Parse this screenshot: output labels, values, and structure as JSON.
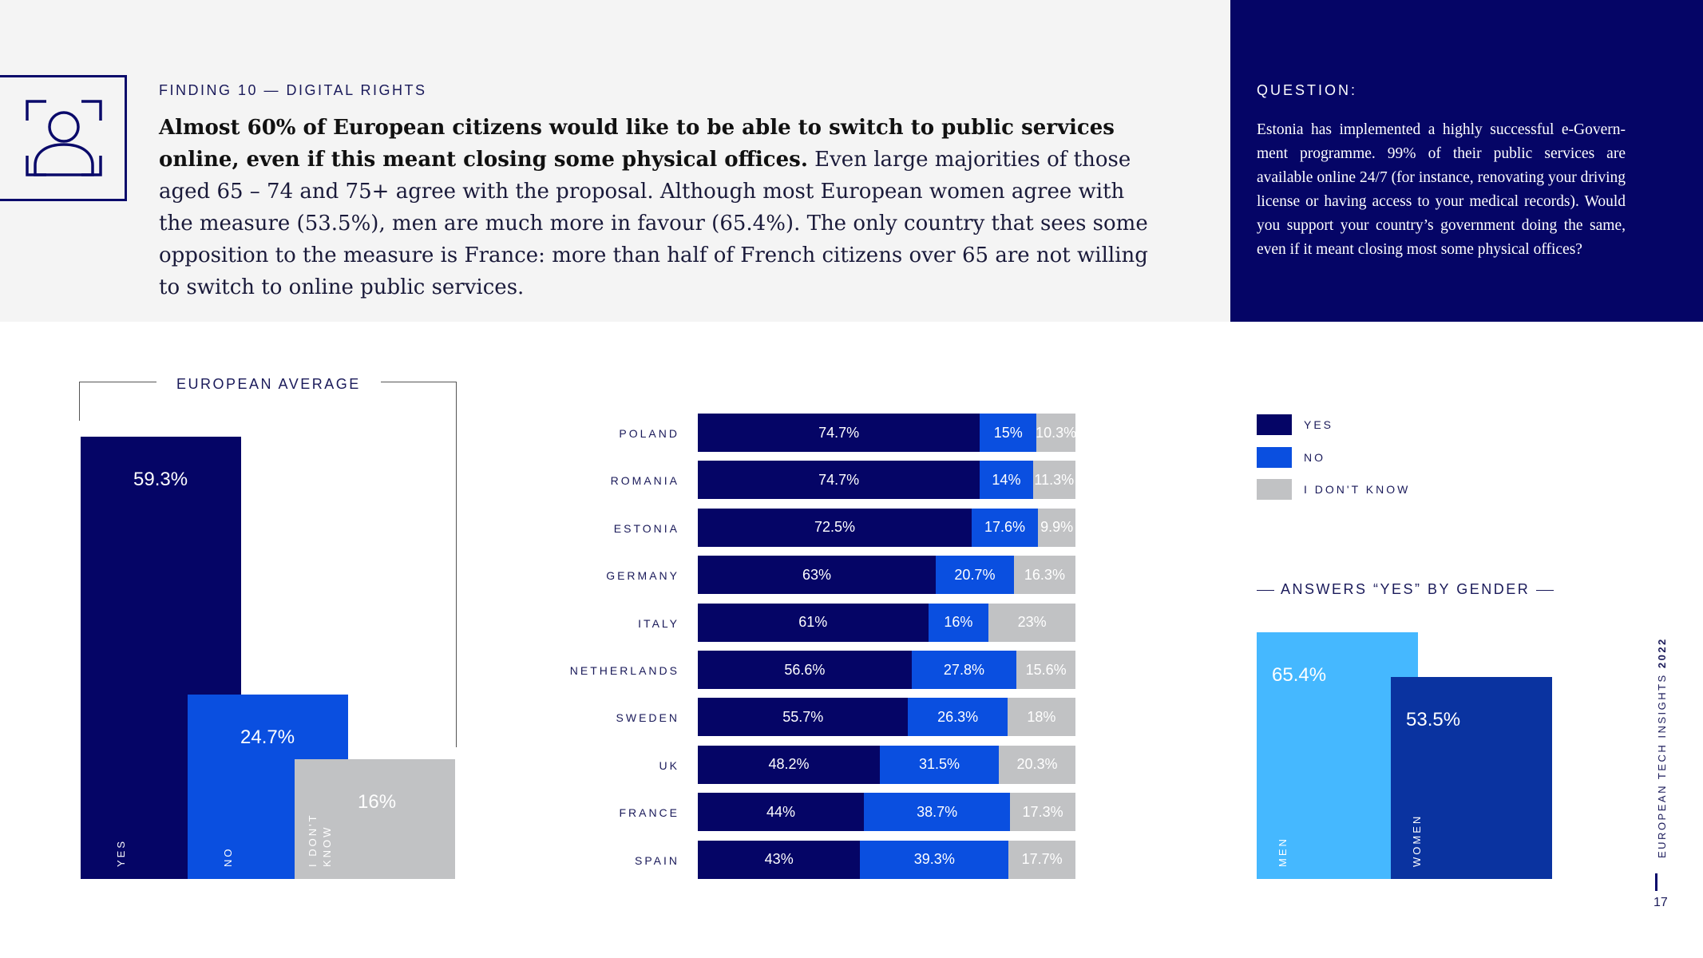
{
  "finding": {
    "label": "FINDING 10 — DIGITAL RIGHTS",
    "bold": "Almost 60% of European citizens would like to be able to switch to public services online, even if this meant closing some physical offices.",
    "body": " Even large majorities of those aged 65 – 74 and 75+ agree with the proposal. Although most European women agree with the measure (53.5%), men are much more in favour (65.4%). The only country that sees some opposition to the measure is France: more than half of French citizens over 65 are not willing to switch to online public services."
  },
  "question": {
    "label": "QUESTION:",
    "text": "Estonia has implemented a highly successful e-Govern-ment programme. 99% of their public services are available online 24/7 (for instance, renovating your driving license or having access to your medical records). Would you support your country’s government doing the same, even if it meant closing most some physical offices?"
  },
  "colors": {
    "yes": "#050566",
    "no": "#0a4fe0",
    "dont_know": "#c1c2c4",
    "men": "#45b8ff",
    "women": "#0a33a0"
  },
  "chart_data": [
    {
      "type": "bar",
      "title": "EUROPEAN AVERAGE",
      "categories": [
        "YES",
        "NO",
        "I DON'T KNOW"
      ],
      "values": [
        59.3,
        24.7,
        16
      ],
      "labels": [
        "59.3%",
        "24.7%",
        "16%"
      ],
      "ylim": [
        0,
        60
      ]
    },
    {
      "type": "bar",
      "subtype": "stacked-horizontal",
      "categories": [
        "POLAND",
        "ROMANIA",
        "ESTONIA",
        "GERMANY",
        "ITALY",
        "NETHERLANDS",
        "SWEDEN",
        "UK",
        "FRANCE",
        "SPAIN"
      ],
      "series": [
        {
          "name": "YES",
          "values": [
            74.7,
            74.7,
            72.5,
            63,
            61,
            56.6,
            55.7,
            48.2,
            44,
            43
          ],
          "labels": [
            "74.7%",
            "74.7%",
            "72.5%",
            "63%",
            "61%",
            "56.6%",
            "55.7%",
            "48.2%",
            "44%",
            "43%"
          ]
        },
        {
          "name": "NO",
          "values": [
            15,
            14,
            17.6,
            20.7,
            16,
            27.8,
            26.3,
            31.5,
            38.7,
            39.3
          ],
          "labels": [
            "15%",
            "14%",
            "17.6%",
            "20.7%",
            "16%",
            "27.8%",
            "26.3%",
            "31.5%",
            "38.7%",
            "39.3%"
          ]
        },
        {
          "name": "I DON'T KNOW",
          "values": [
            10.3,
            11.3,
            9.9,
            16.3,
            23,
            15.6,
            18,
            20.3,
            17.3,
            17.7
          ],
          "labels": [
            "10.3%",
            "11.3%",
            "9.9%",
            "16.3%",
            "23%",
            "15.6%",
            "18%",
            "20.3%",
            "17.3%",
            "17.7%"
          ]
        }
      ],
      "legend": [
        "YES",
        "NO",
        "I DON'T KNOW"
      ],
      "legend_position": "top-right"
    },
    {
      "type": "bar",
      "title": "ANSWERS “YES” BY GENDER",
      "categories": [
        "MEN",
        "WOMEN"
      ],
      "values": [
        65.4,
        53.5
      ],
      "labels": [
        "65.4%",
        "53.5%"
      ],
      "ylim": [
        0,
        65.4
      ]
    }
  ],
  "footer": {
    "brand": "EUROPEAN TECH INSIGHTS",
    "year": "2022",
    "page": "17"
  }
}
